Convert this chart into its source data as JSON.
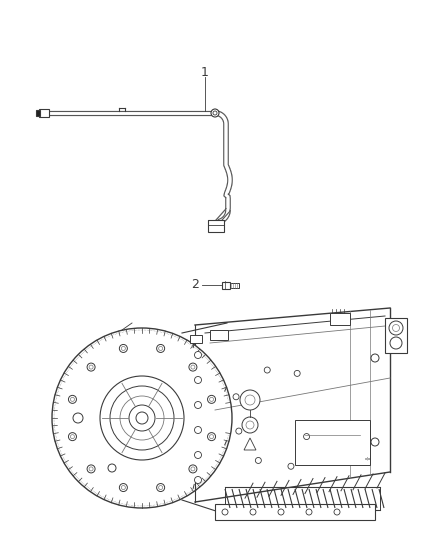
{
  "background_color": "#ffffff",
  "figure_width": 4.38,
  "figure_height": 5.33,
  "dpi": 100,
  "label1": "1",
  "label2": "2",
  "line_color": "#3a3a3a",
  "light_line_color": "#777777",
  "very_light_color": "#aaaaaa",
  "tube_color": "#555555"
}
